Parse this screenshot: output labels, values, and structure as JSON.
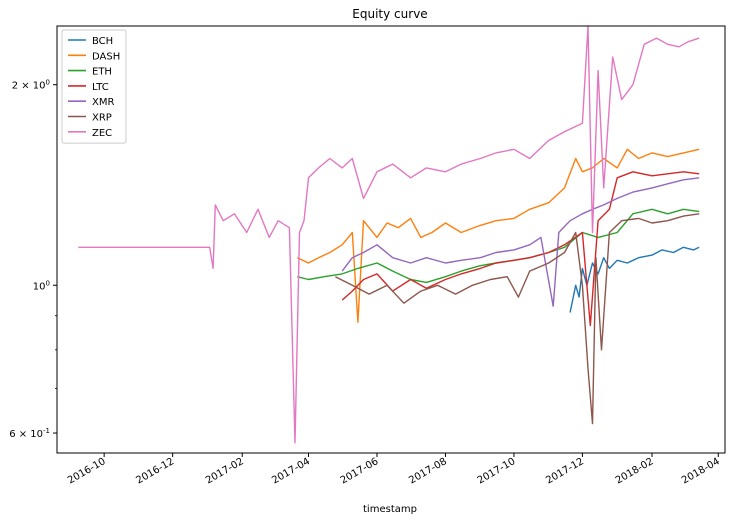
{
  "chart_data": {
    "type": "line",
    "title": "Equity curve",
    "xlabel": "timestamp",
    "ylabel": "",
    "yscale": "log",
    "xlim": [
      "2016-08-20",
      "2018-04-07"
    ],
    "ylim": [
      0.56,
      2.45
    ],
    "grid": false,
    "legend_position": "top-left",
    "x_ticks": [
      "2016-10",
      "2016-12",
      "2017-02",
      "2017-04",
      "2017-06",
      "2017-08",
      "2017-10",
      "2017-12",
      "2018-02",
      "2018-04"
    ],
    "y_ticks": [
      {
        "value": 0.6,
        "base": "6",
        "exp": "-1"
      },
      {
        "value": 1.0,
        "base": "10",
        "exp": "0"
      },
      {
        "value": 2.0,
        "base": "2",
        "exp": "0"
      }
    ],
    "series": [
      {
        "name": "BCH",
        "color": "#1f77b4",
        "points": [
          [
            "2017-11-20",
            0.91
          ],
          [
            "2017-11-25",
            1.0
          ],
          [
            "2017-11-28",
            0.96
          ],
          [
            "2017-12-01",
            1.06
          ],
          [
            "2017-12-05",
            1.0
          ],
          [
            "2017-12-10",
            1.08
          ],
          [
            "2017-12-15",
            1.04
          ],
          [
            "2017-12-20",
            1.1
          ],
          [
            "2017-12-25",
            1.06
          ],
          [
            "2018-01-01",
            1.09
          ],
          [
            "2018-01-10",
            1.08
          ],
          [
            "2018-01-20",
            1.1
          ],
          [
            "2018-02-01",
            1.11
          ],
          [
            "2018-02-10",
            1.13
          ],
          [
            "2018-02-20",
            1.12
          ],
          [
            "2018-03-01",
            1.14
          ],
          [
            "2018-03-10",
            1.13
          ],
          [
            "2018-03-15",
            1.14
          ]
        ]
      },
      {
        "name": "DASH",
        "color": "#ff7f0e",
        "points": [
          [
            "2017-03-22",
            1.1
          ],
          [
            "2017-04-01",
            1.08
          ],
          [
            "2017-04-10",
            1.1
          ],
          [
            "2017-04-20",
            1.12
          ],
          [
            "2017-05-01",
            1.15
          ],
          [
            "2017-05-10",
            1.2
          ],
          [
            "2017-05-15",
            0.88
          ],
          [
            "2017-05-20",
            1.25
          ],
          [
            "2017-06-01",
            1.18
          ],
          [
            "2017-06-10",
            1.24
          ],
          [
            "2017-06-20",
            1.22
          ],
          [
            "2017-07-01",
            1.26
          ],
          [
            "2017-07-10",
            1.18
          ],
          [
            "2017-07-20",
            1.2
          ],
          [
            "2017-08-01",
            1.24
          ],
          [
            "2017-08-15",
            1.2
          ],
          [
            "2017-09-01",
            1.23
          ],
          [
            "2017-09-15",
            1.25
          ],
          [
            "2017-10-01",
            1.26
          ],
          [
            "2017-10-15",
            1.3
          ],
          [
            "2017-11-01",
            1.33
          ],
          [
            "2017-11-15",
            1.4
          ],
          [
            "2017-11-25",
            1.55
          ],
          [
            "2017-12-01",
            1.48
          ],
          [
            "2017-12-10",
            1.5
          ],
          [
            "2017-12-20",
            1.55
          ],
          [
            "2018-01-01",
            1.5
          ],
          [
            "2018-01-10",
            1.6
          ],
          [
            "2018-01-20",
            1.55
          ],
          [
            "2018-02-01",
            1.58
          ],
          [
            "2018-02-15",
            1.56
          ],
          [
            "2018-03-01",
            1.58
          ],
          [
            "2018-03-15",
            1.6
          ]
        ]
      },
      {
        "name": "ETH",
        "color": "#2ca02c",
        "points": [
          [
            "2017-03-22",
            1.03
          ],
          [
            "2017-04-01",
            1.02
          ],
          [
            "2017-04-15",
            1.03
          ],
          [
            "2017-05-01",
            1.04
          ],
          [
            "2017-05-15",
            1.06
          ],
          [
            "2017-06-01",
            1.08
          ],
          [
            "2017-06-15",
            1.05
          ],
          [
            "2017-07-01",
            1.02
          ],
          [
            "2017-07-15",
            1.01
          ],
          [
            "2017-08-01",
            1.03
          ],
          [
            "2017-08-15",
            1.05
          ],
          [
            "2017-09-01",
            1.07
          ],
          [
            "2017-09-15",
            1.08
          ],
          [
            "2017-10-01",
            1.09
          ],
          [
            "2017-10-15",
            1.1
          ],
          [
            "2017-11-01",
            1.12
          ],
          [
            "2017-11-15",
            1.14
          ],
          [
            "2017-12-01",
            1.2
          ],
          [
            "2017-12-15",
            1.18
          ],
          [
            "2018-01-01",
            1.2
          ],
          [
            "2018-01-15",
            1.28
          ],
          [
            "2018-02-01",
            1.3
          ],
          [
            "2018-02-15",
            1.28
          ],
          [
            "2018-03-01",
            1.3
          ],
          [
            "2018-03-15",
            1.29
          ]
        ]
      },
      {
        "name": "LTC",
        "color": "#d62728",
        "points": [
          [
            "2017-05-01",
            0.95
          ],
          [
            "2017-05-10",
            0.98
          ],
          [
            "2017-05-20",
            1.02
          ],
          [
            "2017-06-01",
            1.04
          ],
          [
            "2017-06-15",
            0.98
          ],
          [
            "2017-07-01",
            1.02
          ],
          [
            "2017-07-15",
            0.99
          ],
          [
            "2017-08-01",
            1.02
          ],
          [
            "2017-08-15",
            1.04
          ],
          [
            "2017-09-01",
            1.06
          ],
          [
            "2017-09-15",
            1.08
          ],
          [
            "2017-10-01",
            1.09
          ],
          [
            "2017-10-15",
            1.1
          ],
          [
            "2017-11-01",
            1.12
          ],
          [
            "2017-11-15",
            1.15
          ],
          [
            "2017-12-01",
            1.2
          ],
          [
            "2017-12-08",
            0.87
          ],
          [
            "2017-12-15",
            1.25
          ],
          [
            "2017-12-25",
            1.3
          ],
          [
            "2018-01-01",
            1.45
          ],
          [
            "2018-01-15",
            1.48
          ],
          [
            "2018-02-01",
            1.46
          ],
          [
            "2018-02-15",
            1.47
          ],
          [
            "2018-03-01",
            1.48
          ],
          [
            "2018-03-15",
            1.47
          ]
        ]
      },
      {
        "name": "XMR",
        "color": "#9467bd",
        "points": [
          [
            "2017-05-01",
            1.05
          ],
          [
            "2017-05-10",
            1.1
          ],
          [
            "2017-05-20",
            1.12
          ],
          [
            "2017-06-01",
            1.15
          ],
          [
            "2017-06-15",
            1.1
          ],
          [
            "2017-07-01",
            1.08
          ],
          [
            "2017-07-15",
            1.1
          ],
          [
            "2017-08-01",
            1.08
          ],
          [
            "2017-08-15",
            1.09
          ],
          [
            "2017-09-01",
            1.1
          ],
          [
            "2017-09-15",
            1.12
          ],
          [
            "2017-10-01",
            1.13
          ],
          [
            "2017-10-15",
            1.15
          ],
          [
            "2017-10-25",
            1.18
          ],
          [
            "2017-11-05",
            0.93
          ],
          [
            "2017-11-10",
            1.2
          ],
          [
            "2017-11-20",
            1.25
          ],
          [
            "2017-12-01",
            1.28
          ],
          [
            "2017-12-10",
            1.3
          ],
          [
            "2017-12-20",
            1.32
          ],
          [
            "2018-01-01",
            1.35
          ],
          [
            "2018-01-15",
            1.38
          ],
          [
            "2018-02-01",
            1.4
          ],
          [
            "2018-02-15",
            1.42
          ],
          [
            "2018-03-01",
            1.44
          ],
          [
            "2018-03-15",
            1.45
          ]
        ]
      },
      {
        "name": "XRP",
        "color": "#8c564b",
        "points": [
          [
            "2017-04-25",
            1.03
          ],
          [
            "2017-05-10",
            1.0
          ],
          [
            "2017-05-25",
            0.97
          ],
          [
            "2017-06-10",
            1.0
          ],
          [
            "2017-06-25",
            0.94
          ],
          [
            "2017-07-10",
            0.98
          ],
          [
            "2017-07-25",
            1.0
          ],
          [
            "2017-08-10",
            0.97
          ],
          [
            "2017-08-25",
            1.0
          ],
          [
            "2017-09-10",
            1.02
          ],
          [
            "2017-09-25",
            1.03
          ],
          [
            "2017-10-05",
            0.96
          ],
          [
            "2017-10-15",
            1.05
          ],
          [
            "2017-11-01",
            1.08
          ],
          [
            "2017-11-15",
            1.12
          ],
          [
            "2017-11-25",
            1.2
          ],
          [
            "2017-12-01",
            1.0
          ],
          [
            "2017-12-06",
            0.75
          ],
          [
            "2017-12-10",
            0.62
          ],
          [
            "2017-12-13",
            1.1
          ],
          [
            "2017-12-18",
            0.8
          ],
          [
            "2017-12-25",
            1.2
          ],
          [
            "2018-01-05",
            1.25
          ],
          [
            "2018-01-20",
            1.26
          ],
          [
            "2018-02-01",
            1.24
          ],
          [
            "2018-02-15",
            1.25
          ],
          [
            "2018-03-01",
            1.27
          ],
          [
            "2018-03-15",
            1.28
          ]
        ]
      },
      {
        "name": "ZEC",
        "color": "#e377c2",
        "points": [
          [
            "2016-09-08",
            1.14
          ],
          [
            "2016-10-01",
            1.14
          ],
          [
            "2016-11-01",
            1.14
          ],
          [
            "2016-12-01",
            1.14
          ],
          [
            "2017-01-01",
            1.14
          ],
          [
            "2017-01-03",
            1.14
          ],
          [
            "2017-01-06",
            1.06
          ],
          [
            "2017-01-08",
            1.32
          ],
          [
            "2017-01-15",
            1.25
          ],
          [
            "2017-01-25",
            1.28
          ],
          [
            "2017-02-05",
            1.2
          ],
          [
            "2017-02-15",
            1.3
          ],
          [
            "2017-02-25",
            1.18
          ],
          [
            "2017-03-05",
            1.25
          ],
          [
            "2017-03-15",
            1.22
          ],
          [
            "2017-03-20",
            0.58
          ],
          [
            "2017-03-24",
            1.2
          ],
          [
            "2017-03-28",
            1.25
          ],
          [
            "2017-04-01",
            1.45
          ],
          [
            "2017-04-10",
            1.5
          ],
          [
            "2017-04-20",
            1.55
          ],
          [
            "2017-05-01",
            1.5
          ],
          [
            "2017-05-10",
            1.55
          ],
          [
            "2017-05-20",
            1.35
          ],
          [
            "2017-06-01",
            1.48
          ],
          [
            "2017-06-15",
            1.52
          ],
          [
            "2017-07-01",
            1.45
          ],
          [
            "2017-07-15",
            1.5
          ],
          [
            "2017-08-01",
            1.48
          ],
          [
            "2017-08-15",
            1.52
          ],
          [
            "2017-09-01",
            1.55
          ],
          [
            "2017-09-15",
            1.58
          ],
          [
            "2017-10-01",
            1.6
          ],
          [
            "2017-10-15",
            1.55
          ],
          [
            "2017-11-01",
            1.65
          ],
          [
            "2017-11-15",
            1.7
          ],
          [
            "2017-12-01",
            1.75
          ],
          [
            "2017-12-06",
            2.45
          ],
          [
            "2017-12-10",
            1.2
          ],
          [
            "2017-12-15",
            2.1
          ],
          [
            "2017-12-20",
            1.4
          ],
          [
            "2017-12-28",
            2.2
          ],
          [
            "2018-01-05",
            1.9
          ],
          [
            "2018-01-15",
            2.0
          ],
          [
            "2018-01-25",
            2.3
          ],
          [
            "2018-02-05",
            2.35
          ],
          [
            "2018-02-15",
            2.3
          ],
          [
            "2018-02-25",
            2.28
          ],
          [
            "2018-03-05",
            2.32
          ],
          [
            "2018-03-15",
            2.35
          ]
        ]
      }
    ]
  }
}
